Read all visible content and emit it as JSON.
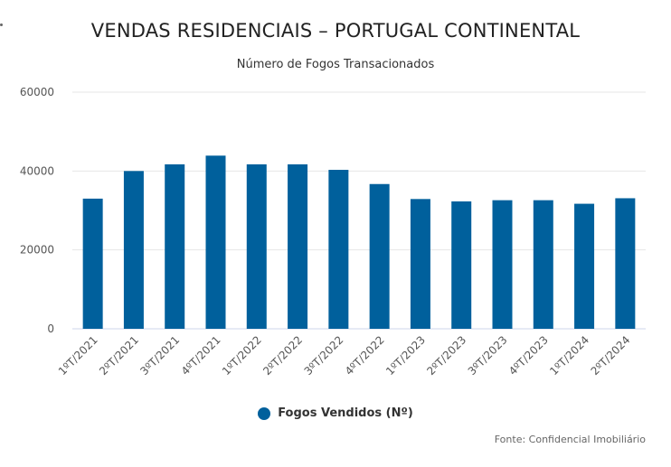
{
  "chart_data": {
    "type": "bar",
    "title": "VENDAS RESIDENCIAIS – PORTUGAL CONTINENTAL",
    "subtitle": "Número de Fogos Transacionados",
    "categories": [
      "1ºT/2021",
      "2ºT/2021",
      "3ºT/2021",
      "4ºT/2021",
      "1ºT/2022",
      "2ºT/2022",
      "3ºT/2022",
      "4ºT/2022",
      "1ºT/2023",
      "2ºT/2023",
      "3ºT/2023",
      "4ºT/2023",
      "1ºT/2024",
      "2ºT/2024"
    ],
    "series": [
      {
        "name": "Fogos Vendidos (Nº)",
        "values": [
          33000,
          40000,
          41700,
          43900,
          41700,
          41700,
          40300,
          36700,
          32900,
          32300,
          32600,
          32600,
          31700,
          33100
        ],
        "color": "#00609c"
      }
    ],
    "ylim": [
      0,
      60000
    ],
    "yticks": [
      0,
      20000,
      40000,
      60000
    ],
    "grid": true,
    "legend_position": "bottom-center",
    "credit": "Fonte: Confidencial Imobiliário"
  }
}
